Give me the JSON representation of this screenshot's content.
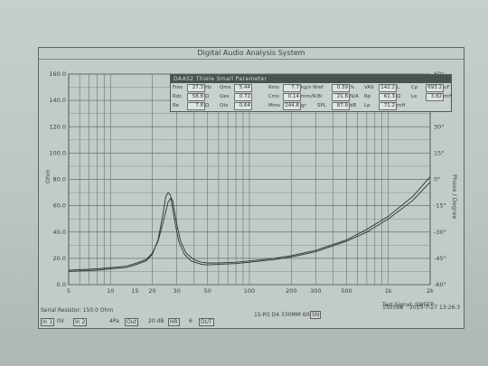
{
  "window": {
    "title": "Digital Audio Analysis System"
  },
  "params": {
    "title": "DAAS2 Thiele Small Parameter",
    "rows": [
      [
        {
          "label": "Fres",
          "value": "27.3",
          "unit": "Hz"
        },
        {
          "label": "Qms",
          "value": "5.44",
          "unit": ""
        },
        {
          "label": "Rms",
          "value": "7.7",
          "unit": "kg/s Nref"
        },
        {
          "label": "",
          "value": "0.39",
          "unit": "%"
        },
        {
          "label": "VAS",
          "value": "142.2",
          "unit": "L"
        },
        {
          "label": "Cp",
          "value": "693.2",
          "unit": "uF"
        }
      ],
      [
        {
          "label": "Rdc",
          "value": "58.8",
          "unit": "Ω"
        },
        {
          "label": "Qes",
          "value": "0.72",
          "unit": ""
        },
        {
          "label": "Cms",
          "value": "0.14",
          "unit": "mm/N"
        },
        {
          "label": "Bl",
          "value": "21.8",
          "unit": "N/A"
        },
        {
          "label": "Rp",
          "value": "61.3",
          "unit": "Ω"
        },
        {
          "label": "Le",
          "value": "3.82",
          "unit": "mH"
        }
      ],
      [
        {
          "label": "Re",
          "value": "7.8",
          "unit": "Ω"
        },
        {
          "label": "Qts",
          "value": "0.64",
          "unit": ""
        },
        {
          "label": "Mms",
          "value": "244.6",
          "unit": "gr"
        },
        {
          "label": "SPL",
          "value": "87.9",
          "unit": "dB"
        },
        {
          "label": "Lp",
          "value": "71.2",
          "unit": "mH"
        }
      ]
    ]
  },
  "chart_data": {
    "type": "line",
    "xscale": "log",
    "xlim": [
      5,
      2000
    ],
    "x_ticks": [
      5,
      10,
      15,
      20,
      30,
      50,
      100,
      200,
      300,
      500,
      1000,
      2000
    ],
    "x_tick_labels": [
      "5",
      "10",
      "15",
      "20",
      "30",
      "50",
      "100",
      "200",
      "300",
      "500",
      "1k",
      "2k"
    ],
    "ylim": [
      0,
      160
    ],
    "y_ticks": [
      0,
      20,
      40,
      60,
      80,
      100,
      120,
      140,
      160
    ],
    "y_tick_labels": [
      "0.0",
      "20.0",
      "40.0",
      "60.0",
      "80.0",
      "100.0",
      "120.0",
      "140.0",
      "160.0"
    ],
    "ylabel": "Ohm",
    "y2lim": [
      -60,
      60
    ],
    "y2_ticks": [
      60,
      45,
      30,
      15,
      0,
      -15,
      -30,
      -45,
      -60
    ],
    "y2_tick_labels": [
      "60°",
      "45°",
      "30°",
      "15°",
      "0°",
      "-15°",
      "-30°",
      "-45°",
      "-60°"
    ],
    "y2label": "Phase / Degree",
    "grid": true,
    "series": [
      {
        "x": [
          5,
          8,
          10,
          13,
          15,
          18,
          20,
          22,
          24,
          26,
          27.3,
          28,
          30,
          32,
          35,
          40,
          45,
          50,
          60,
          80,
          100,
          150,
          200,
          300,
          500,
          700,
          1000,
          1500,
          2000
        ],
        "y": [
          11,
          12,
          13,
          14,
          16,
          19,
          24,
          33,
          48,
          63,
          66,
          64,
          46,
          33,
          24,
          19,
          17,
          16.5,
          16.5,
          17,
          18,
          20,
          22,
          26,
          34,
          42,
          52,
          67,
          82
        ]
      },
      {
        "x": [
          5,
          8,
          10,
          13,
          15,
          18,
          20,
          22,
          24,
          25,
          26,
          27,
          29,
          31,
          34,
          38,
          45,
          50,
          60,
          80,
          100,
          150,
          200,
          300,
          500,
          700,
          1000,
          1500,
          2000
        ],
        "y": [
          10,
          11,
          12,
          13,
          15,
          18,
          23,
          34,
          55,
          67,
          70,
          68,
          48,
          33,
          23,
          18,
          15.5,
          15,
          15.5,
          16,
          17,
          19,
          21,
          25,
          33,
          40,
          50,
          64,
          78
        ]
      }
    ]
  },
  "status": {
    "serial_resistor": "Serial Resistor: 150.0 Ohm",
    "test_signal": "Test Signal: SWEEP",
    "model": "15-RS D4 330MM 60G",
    "model_btn": "SN",
    "counter": "150598",
    "date": "2015-7-27",
    "time": "13:26:3",
    "ctrl_in1": "In 1",
    "ctrl_0v": "0V",
    "ctrl_in2": "In 2",
    "ctrl_4pa": "4Pa",
    "ctrl_out": "Out",
    "ctrl_20db": "20 dB",
    "ctrl_hr": "HR",
    "ctrl_6": "6",
    "ctrl_dut": "DUT"
  }
}
